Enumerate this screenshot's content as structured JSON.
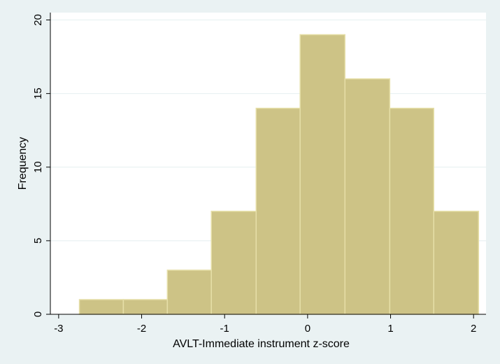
{
  "chart_data": {
    "type": "bar",
    "xlabel": "AVLT-Immediate instrument z-score",
    "ylabel": "Frequency",
    "xlim": [
      -3.1,
      2.15
    ],
    "ylim": [
      0,
      20.5
    ],
    "xticks": [
      -3,
      -2,
      -1,
      0,
      1,
      2
    ],
    "yticks": [
      0,
      5,
      10,
      15,
      20
    ],
    "grid": true,
    "bins": [
      {
        "start": -2.75,
        "end": -2.22,
        "value": 1
      },
      {
        "start": -2.22,
        "end": -1.69,
        "value": 1
      },
      {
        "start": -1.69,
        "end": -1.16,
        "value": 3
      },
      {
        "start": -1.16,
        "end": -0.62,
        "value": 7
      },
      {
        "start": -0.62,
        "end": -0.09,
        "value": 14
      },
      {
        "start": -0.09,
        "end": 0.45,
        "value": 19
      },
      {
        "start": 0.45,
        "end": 0.99,
        "value": 16
      },
      {
        "start": 0.99,
        "end": 1.52,
        "value": 14
      },
      {
        "start": 1.52,
        "end": 2.06,
        "value": 7
      }
    ],
    "colors": {
      "bar_fill": "#cdc386",
      "bar_stroke": "#e6dfa8",
      "grid": "#eaf2f3",
      "plot_bg": "#ffffff",
      "page_bg": "#eaf2f3"
    }
  }
}
